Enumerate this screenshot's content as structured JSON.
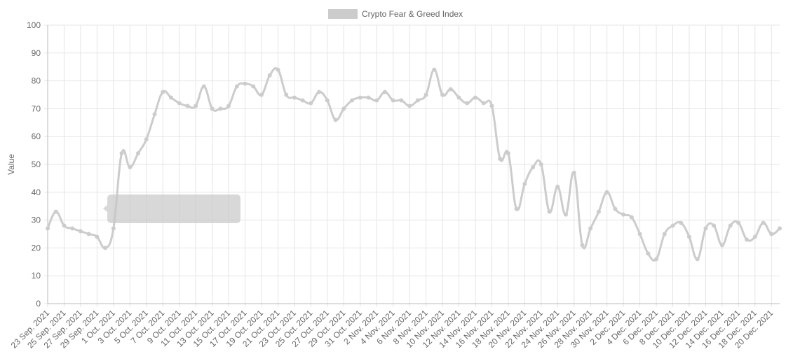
{
  "chart_data": {
    "type": "line",
    "categories": [
      "23 Sep. 2021",
      null,
      "25 Sep. 2021",
      null,
      "27 Sep. 2021",
      null,
      "29 Sep. 2021",
      null,
      "1 Oct. 2021",
      null,
      "3 Oct. 2021",
      null,
      "5 Oct. 2021",
      null,
      "7 Oct. 2021",
      null,
      "9 Oct. 2021",
      null,
      "11 Oct. 2021",
      null,
      "13 Oct. 2021",
      null,
      "15 Oct. 2021",
      null,
      "17 Oct. 2021",
      null,
      "19 Oct. 2021",
      null,
      "21 Oct. 2021",
      null,
      "23 Oct. 2021",
      null,
      "25 Oct. 2021",
      null,
      "27 Oct. 2021",
      null,
      "29 Oct. 2021",
      null,
      "31 Oct. 2021",
      null,
      "2 Nov. 2021",
      null,
      "4 Nov. 2021",
      null,
      "6 Nov. 2021",
      null,
      "8 Nov. 2021",
      null,
      "10 Nov. 2021",
      null,
      "12 Nov. 2021",
      null,
      "14 Nov. 2021",
      null,
      "16 Nov. 2021",
      null,
      "18 Nov. 2021",
      null,
      "20 Nov. 2021",
      null,
      "22 Nov. 2021",
      null,
      "24 Nov. 2021",
      null,
      "26 Nov. 2021",
      null,
      "28 Nov. 2021",
      null,
      "30 Nov. 2021",
      null,
      "2 Dec. 2021",
      null,
      "4 Dec. 2021",
      null,
      "6 Dec. 2021",
      null,
      "8 Dec. 2021",
      null,
      "10 Dec. 2021",
      null,
      "12 Dec. 2021",
      null,
      "14 Dec. 2021",
      null,
      "16 Dec. 2021",
      null,
      "18 Dec. 2021",
      null,
      "20 Dec. 2021",
      null
    ],
    "series": [
      {
        "name": "Crypto Fear & Greed Index",
        "color": "#cccccc",
        "values": [
          27,
          33,
          28,
          27,
          26,
          25,
          24,
          20,
          27,
          54,
          49,
          54,
          59,
          68,
          76,
          74,
          72,
          71,
          71,
          78,
          70,
          70,
          71,
          78,
          79,
          78,
          75,
          82,
          84,
          75,
          74,
          73,
          72,
          76,
          73,
          66,
          70,
          73,
          74,
          74,
          73,
          76,
          73,
          73,
          71,
          73,
          75,
          84,
          75,
          77,
          74,
          72,
          74,
          72,
          71,
          52,
          54,
          34,
          43,
          49,
          50,
          33,
          42,
          32,
          47,
          21,
          27,
          33,
          40,
          34,
          32,
          31,
          25,
          18,
          16,
          25,
          28,
          29,
          24,
          16,
          27,
          28,
          21,
          28,
          29,
          23,
          24,
          29,
          25,
          27
        ]
      }
    ],
    "y_label": "Value",
    "ylim": [
      0,
      100
    ],
    "yticks": [
      0,
      10,
      20,
      30,
      40,
      50,
      60,
      70,
      80,
      90,
      100
    ],
    "grid": true
  }
}
